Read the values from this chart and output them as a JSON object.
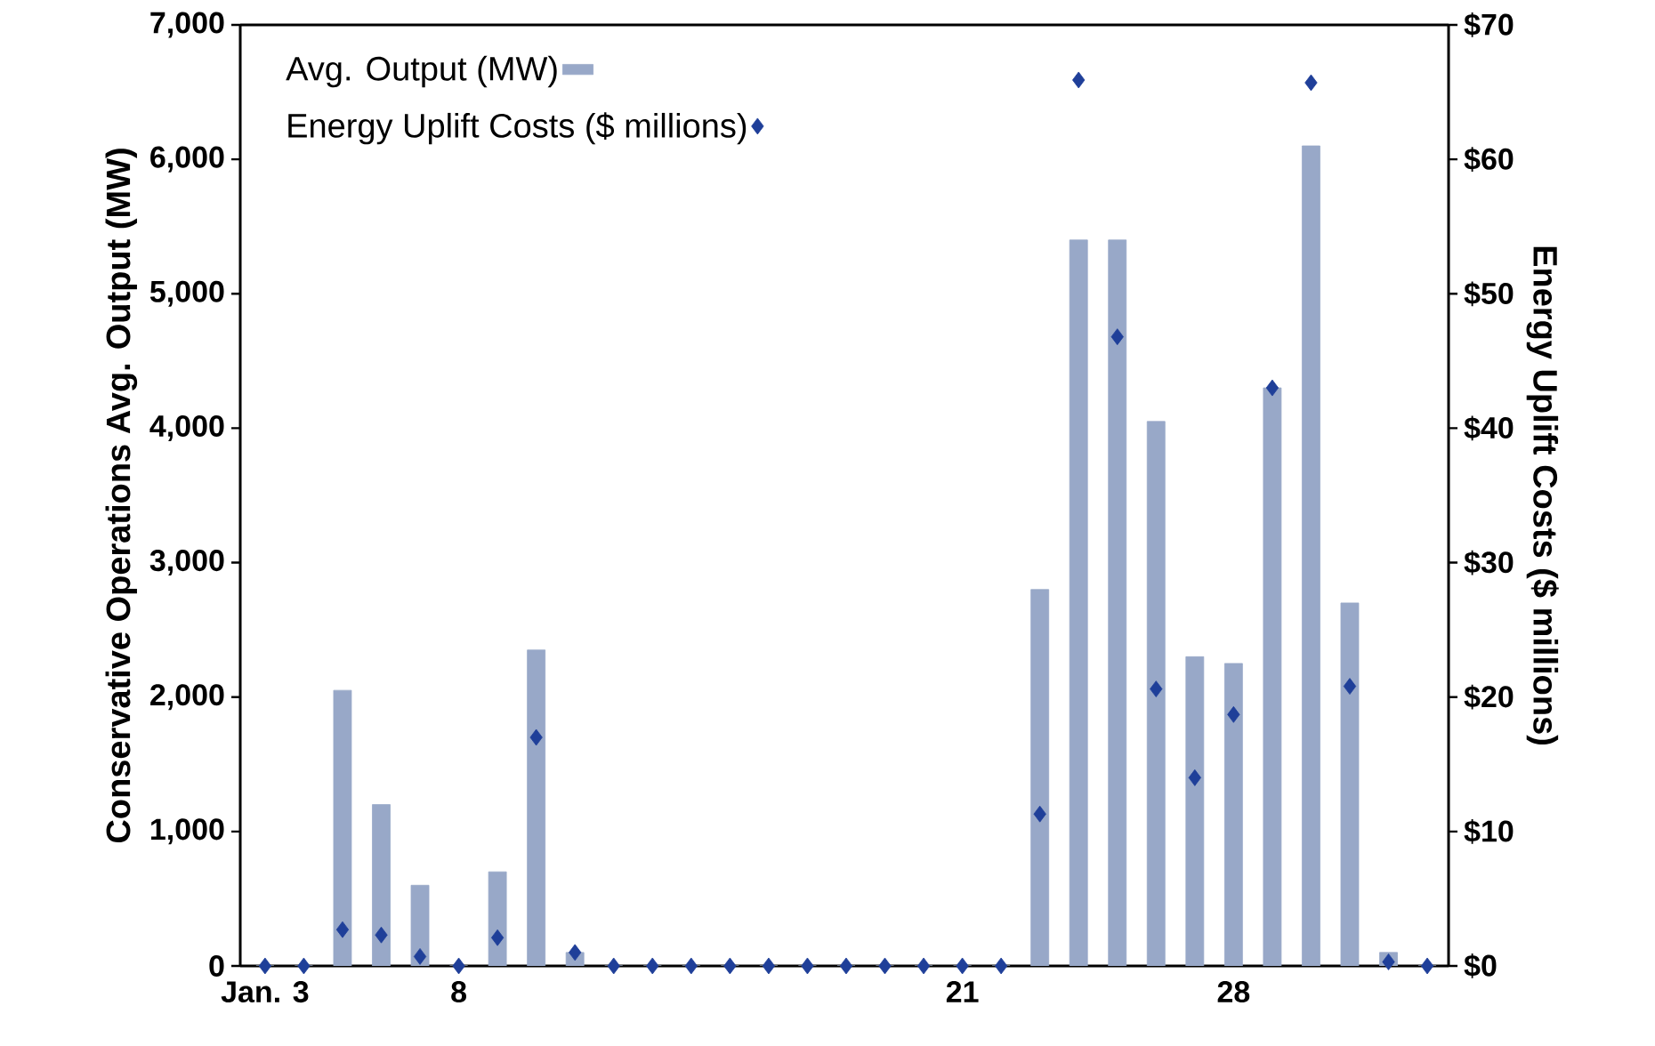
{
  "chart_data": {
    "type": "bar",
    "xlabel": null,
    "ylabel": "Conservative Operations Avg. Output (MW)",
    "y2label": "Energy Uplift Costs ($ millions)",
    "categories": [
      "Jan. 3",
      null,
      null,
      null,
      null,
      "8",
      null,
      null,
      null,
      null,
      null,
      null,
      null,
      null,
      null,
      null,
      null,
      null,
      "21",
      null,
      null,
      null,
      null,
      null,
      null,
      "28",
      null,
      null,
      null,
      null,
      null
    ],
    "series": [
      {
        "name": "Avg. Output (MW)",
        "color": "#98a8c8",
        "values": [
          0,
          0,
          2050,
          1200,
          600,
          0,
          700,
          2350,
          100,
          0,
          0,
          0,
          0,
          0,
          0,
          0,
          0,
          0,
          0,
          0,
          2800,
          5400,
          5400,
          4050,
          2300,
          2250,
          4300,
          6100,
          2700,
          100,
          0
        ]
      },
      {
        "name": "Energy Uplift Costs ($ millions)",
        "type": "scatter",
        "axis": "y2",
        "marker": "diamond",
        "color": "#1f3f99",
        "values": [
          0,
          0,
          2.7,
          2.3,
          0.7,
          0,
          2.1,
          17,
          1,
          0,
          0,
          0,
          0,
          0,
          0,
          0,
          0,
          0,
          0,
          0,
          11.3,
          65.9,
          46.8,
          20.6,
          14,
          18.7,
          43,
          65.7,
          20.8,
          0.3,
          0
        ]
      }
    ],
    "ylim": [
      0,
      7000
    ],
    "yticks": [
      0,
      {
        "value": 1000,
        "label": "1,000"
      },
      {
        "value": 2000,
        "label": "2,000"
      },
      {
        "value": 3000,
        "label": "3,000"
      },
      {
        "value": 4000,
        "label": "4,000"
      },
      {
        "value": 5000,
        "label": "5,000"
      },
      {
        "value": 6000,
        "label": "6,000"
      },
      {
        "value": 7000,
        "label": "7,000"
      }
    ],
    "y2lim": [
      0,
      70
    ],
    "y2ticks": [
      {
        "value": 0,
        "label": "$0"
      },
      {
        "value": 10,
        "label": "$10"
      },
      {
        "value": 20,
        "label": "$20"
      },
      {
        "value": 30,
        "label": "$30"
      },
      {
        "value": 40,
        "label": "$40"
      },
      {
        "value": 50,
        "label": "$50"
      },
      {
        "value": 60,
        "label": "$60"
      },
      {
        "value": 70,
        "label": "$70"
      }
    ],
    "grid": false,
    "legend": "top left"
  }
}
